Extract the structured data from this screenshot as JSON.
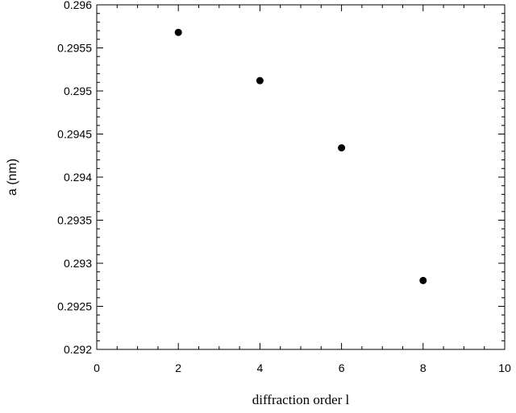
{
  "chart_data": {
    "type": "scatter",
    "title": "",
    "xlabel": "diffraction order l",
    "ylabel": "a (nm)",
    "xlim": [
      0,
      10
    ],
    "ylim": [
      0.292,
      0.296
    ],
    "x_ticks": [
      0,
      2,
      4,
      6,
      8,
      10
    ],
    "x_tick_labels": [
      "0",
      "2",
      "4",
      "6",
      "8",
      "10"
    ],
    "y_ticks": [
      0.292,
      0.2925,
      0.293,
      0.2935,
      0.294,
      0.2945,
      0.295,
      0.2955,
      0.296
    ],
    "y_tick_labels": [
      "0.292",
      "0.2925",
      "0.293",
      "0.2935",
      "0.294",
      "0.2945",
      "0.295",
      "0.2955",
      "0.296"
    ],
    "grid": false,
    "marker_color": "#000000",
    "series": [
      {
        "x": [
          2,
          4,
          6,
          8
        ],
        "y": [
          0.29568,
          0.29512,
          0.29434,
          0.2928
        ]
      }
    ]
  }
}
